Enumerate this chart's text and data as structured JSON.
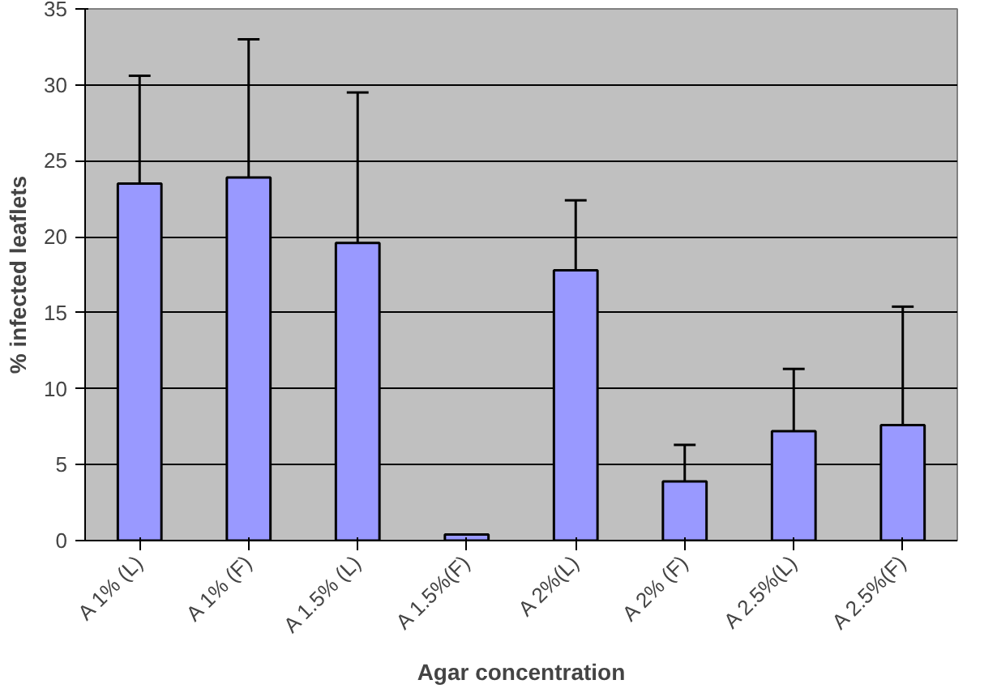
{
  "chart_data": {
    "type": "bar",
    "xlabel": "Agar concentration",
    "ylabel": "% infected leaflets",
    "categories": [
      "A 1% (L)",
      "A 1% (F)",
      "A 1.5% (L)",
      "A 1.5%(F)",
      "A 2%(L)",
      "A 2% (F)",
      "A 2.5%(L)",
      "A 2.5%(F)"
    ],
    "values": [
      23.5,
      23.9,
      19.6,
      0.4,
      17.8,
      3.9,
      7.2,
      7.6
    ],
    "errors": [
      [
        23.5,
        30.6
      ],
      [
        23.9,
        33.0
      ],
      [
        19.6,
        29.5
      ],
      null,
      [
        17.8,
        22.4
      ],
      [
        3.9,
        6.3
      ],
      [
        7.2,
        11.3
      ],
      [
        7.6,
        15.4
      ]
    ],
    "color": "#9999ff",
    "ylim": [
      0,
      35
    ],
    "yticks": [
      0,
      5,
      10,
      15,
      20,
      25,
      30,
      35
    ],
    "grid": "y"
  }
}
